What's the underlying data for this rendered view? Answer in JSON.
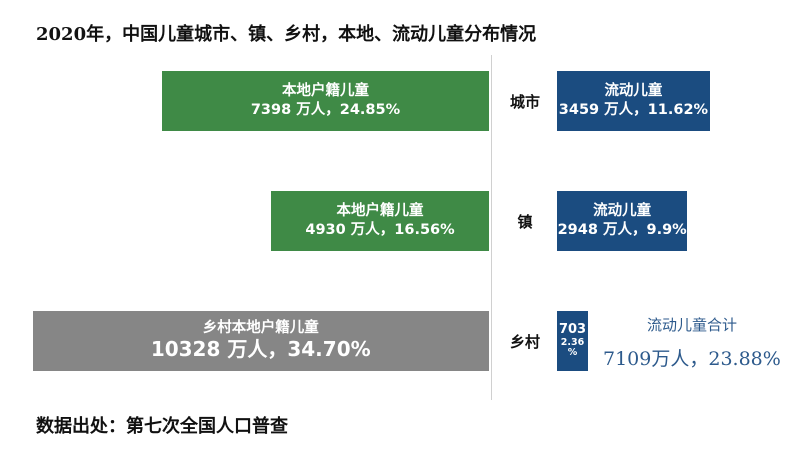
{
  "chart_data": {
    "type": "bar",
    "title": "2020年，中国儿童城市、镇、乡村，本地、流动儿童分布情况",
    "source": "数据出处：第七次全国人口普查",
    "categories": [
      "城市",
      "镇",
      "乡村"
    ],
    "series": [
      {
        "name": "本地户籍儿童",
        "color": "#3f8a46",
        "values": [
          7398,
          4930,
          10328
        ],
        "shares": [
          24.85,
          16.56,
          34.7
        ],
        "labels": [
          {
            "name": "本地户籍儿童",
            "value": "7398 万人，24.85%"
          },
          {
            "name": "本地户籍儿童",
            "value": "4930 万人，16.56%"
          },
          {
            "name": "乡村本地户籍儿童",
            "value": "10328 万人，34.70%"
          }
        ]
      },
      {
        "name": "流动儿童",
        "color": "#1b4c80",
        "values": [
          3459,
          2948,
          703
        ],
        "shares": [
          11.62,
          9.9,
          2.36
        ],
        "labels": [
          {
            "name": "流动儿童",
            "value": "3459 万人，11.62%"
          },
          {
            "name": "流动儿童",
            "value": "2948 万人，9.9%"
          },
          {
            "name": "703",
            "value": "2.36\n%"
          }
        ]
      }
    ],
    "total": {
      "label": "流动儿童合计",
      "value": "7109万人，23.88%"
    }
  }
}
